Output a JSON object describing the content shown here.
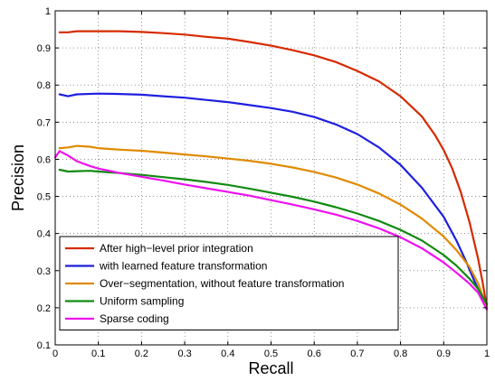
{
  "chart_data": {
    "type": "line",
    "title": "",
    "xlabel": "Recall",
    "ylabel": "Precision",
    "xlim": [
      0,
      1
    ],
    "ylim": [
      0.1,
      1
    ],
    "xticks": [
      "0",
      "0.1",
      "0.2",
      "0.3",
      "0.4",
      "0.5",
      "0.6",
      "0.7",
      "0.8",
      "0.9",
      "1"
    ],
    "yticks": [
      "0.1",
      "0.2",
      "0.3",
      "0.4",
      "0.5",
      "0.6",
      "0.7",
      "0.8",
      "0.9",
      "1"
    ],
    "grid": "dotted",
    "legend_position": "bottom-left",
    "series": [
      {
        "name": "After high−level prior integration",
        "color": "#d62a00",
        "x": [
          0.01,
          0.03,
          0.05,
          0.1,
          0.15,
          0.2,
          0.25,
          0.3,
          0.35,
          0.4,
          0.45,
          0.5,
          0.55,
          0.6,
          0.65,
          0.7,
          0.75,
          0.8,
          0.85,
          0.88,
          0.9,
          0.92,
          0.94,
          0.96,
          0.98,
          0.99,
          1.0
        ],
        "y": [
          0.942,
          0.942,
          0.945,
          0.945,
          0.945,
          0.943,
          0.94,
          0.936,
          0.93,
          0.925,
          0.916,
          0.906,
          0.894,
          0.88,
          0.862,
          0.838,
          0.81,
          0.77,
          0.715,
          0.665,
          0.625,
          0.575,
          0.51,
          0.43,
          0.33,
          0.27,
          0.2
        ]
      },
      {
        "name": "with learned feature transformation",
        "color": "#1f1fe0",
        "x": [
          0.01,
          0.03,
          0.05,
          0.1,
          0.15,
          0.2,
          0.25,
          0.3,
          0.35,
          0.4,
          0.45,
          0.5,
          0.55,
          0.6,
          0.65,
          0.7,
          0.75,
          0.8,
          0.85,
          0.9,
          0.93,
          0.95,
          0.97,
          0.99,
          1.0
        ],
        "y": [
          0.775,
          0.77,
          0.775,
          0.777,
          0.776,
          0.774,
          0.77,
          0.766,
          0.76,
          0.754,
          0.746,
          0.738,
          0.728,
          0.714,
          0.694,
          0.668,
          0.632,
          0.585,
          0.523,
          0.445,
          0.38,
          0.33,
          0.275,
          0.225,
          0.2
        ]
      },
      {
        "name": "Over−segmentation, without feature transformation",
        "color": "#e08a00",
        "x": [
          0.01,
          0.03,
          0.05,
          0.08,
          0.1,
          0.15,
          0.2,
          0.25,
          0.3,
          0.35,
          0.4,
          0.45,
          0.5,
          0.55,
          0.6,
          0.65,
          0.7,
          0.75,
          0.8,
          0.85,
          0.9,
          0.93,
          0.96,
          0.98,
          1.0
        ],
        "y": [
          0.63,
          0.632,
          0.636,
          0.634,
          0.63,
          0.626,
          0.623,
          0.618,
          0.613,
          0.608,
          0.602,
          0.596,
          0.588,
          0.578,
          0.566,
          0.551,
          0.532,
          0.508,
          0.478,
          0.44,
          0.392,
          0.355,
          0.31,
          0.265,
          0.2
        ]
      },
      {
        "name": "Uniform sampling",
        "color": "#118a11",
        "x": [
          0.01,
          0.03,
          0.05,
          0.08,
          0.1,
          0.15,
          0.2,
          0.25,
          0.3,
          0.35,
          0.4,
          0.45,
          0.5,
          0.55,
          0.6,
          0.65,
          0.7,
          0.75,
          0.8,
          0.85,
          0.9,
          0.93,
          0.96,
          0.98,
          1.0
        ],
        "y": [
          0.572,
          0.567,
          0.568,
          0.569,
          0.567,
          0.563,
          0.558,
          0.552,
          0.546,
          0.539,
          0.531,
          0.521,
          0.51,
          0.499,
          0.486,
          0.471,
          0.454,
          0.434,
          0.41,
          0.381,
          0.342,
          0.313,
          0.278,
          0.25,
          0.21
        ]
      },
      {
        "name": "Sparse coding",
        "color": "#ee11ee",
        "x": [
          0.0,
          0.01,
          0.03,
          0.05,
          0.08,
          0.1,
          0.15,
          0.2,
          0.25,
          0.3,
          0.35,
          0.4,
          0.45,
          0.5,
          0.55,
          0.6,
          0.65,
          0.7,
          0.75,
          0.8,
          0.85,
          0.9,
          0.93,
          0.96,
          0.98,
          1.0
        ],
        "y": [
          0.605,
          0.622,
          0.61,
          0.595,
          0.582,
          0.575,
          0.563,
          0.553,
          0.543,
          0.532,
          0.522,
          0.512,
          0.502,
          0.49,
          0.478,
          0.465,
          0.451,
          0.434,
          0.414,
          0.39,
          0.36,
          0.322,
          0.294,
          0.265,
          0.24,
          0.195
        ]
      }
    ]
  }
}
